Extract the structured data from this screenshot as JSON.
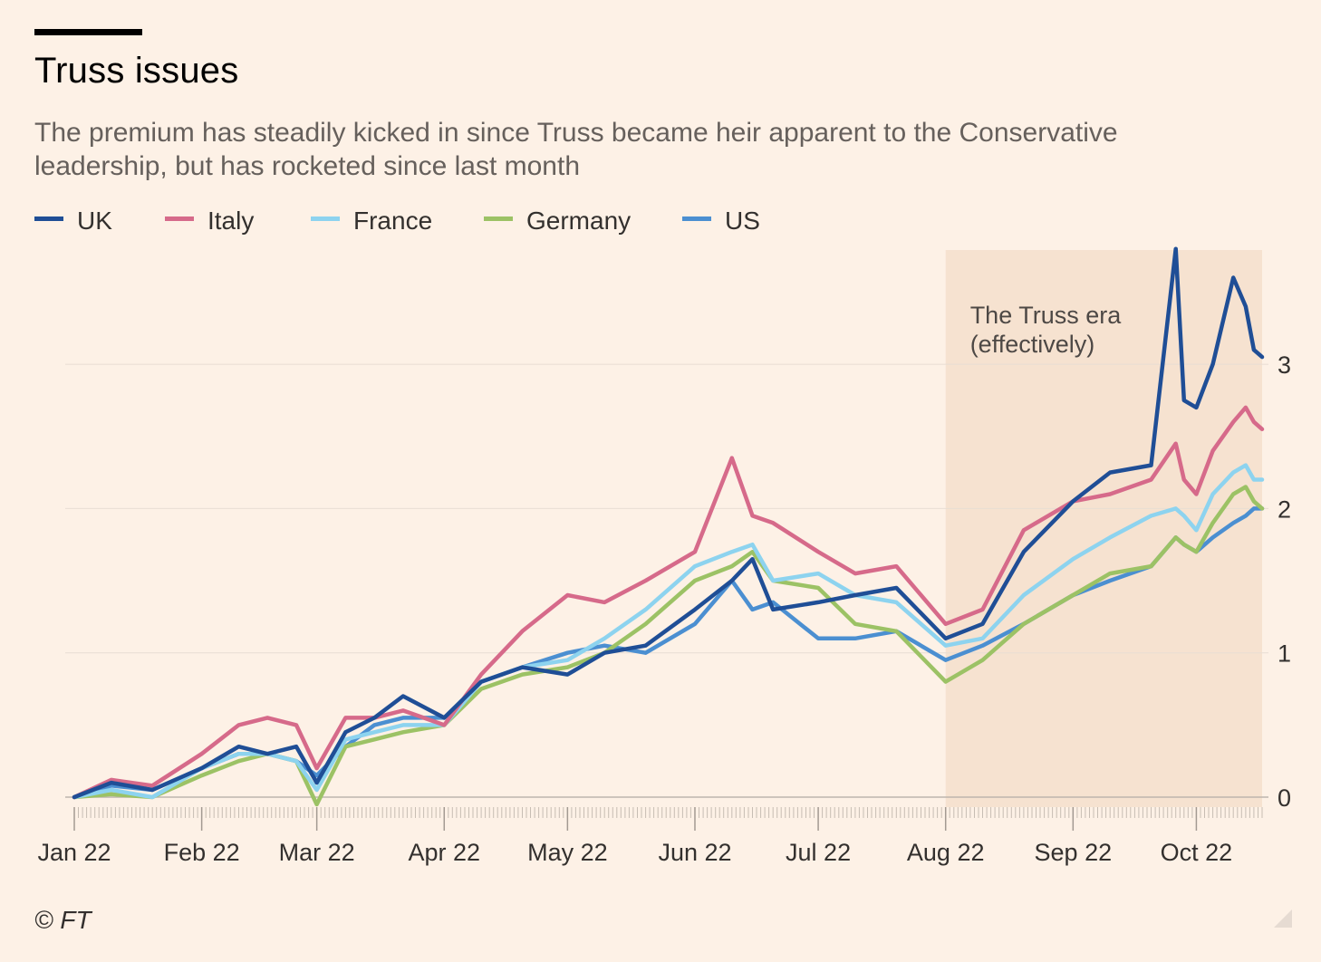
{
  "title": "Truss issues",
  "subtitle": "The premium has steadily kicked in since Truss became heir apparent to the Conservative leadership, but has rocketed since last month",
  "source": "© FT",
  "legend": [
    {
      "name": "UK",
      "color": "#1f4e96"
    },
    {
      "name": "Italy",
      "color": "#d66a8a"
    },
    {
      "name": "France",
      "color": "#8dd3ef"
    },
    {
      "name": "Germany",
      "color": "#9cc265"
    },
    {
      "name": "US",
      "color": "#4b8fd1"
    }
  ],
  "annotation": {
    "line1": "The Truss era",
    "line2": "(effectively)"
  },
  "chart_data": {
    "type": "line",
    "x_tick_labels": [
      "Jan 22",
      "Feb 22",
      "Mar 22",
      "Apr 22",
      "May 22",
      "Jun 22",
      "Jul 22",
      "Aug 22",
      "Sep 22",
      "Oct 22"
    ],
    "y_ticks": [
      0,
      1,
      2,
      3
    ],
    "ylim": [
      -0.1,
      3.8
    ],
    "y_axis_side": "right",
    "grid": true,
    "legend_position": "top-left",
    "shaded_region": {
      "from": "2022-08-01",
      "to": "2022-10-17",
      "label": "The Truss era (effectively)"
    },
    "x_dates": [
      "2022-01-01",
      "2022-01-10",
      "2022-01-20",
      "2022-02-01",
      "2022-02-10",
      "2022-02-17",
      "2022-02-24",
      "2022-03-01",
      "2022-03-08",
      "2022-03-15",
      "2022-03-22",
      "2022-04-01",
      "2022-04-10",
      "2022-04-20",
      "2022-05-01",
      "2022-05-10",
      "2022-05-20",
      "2022-06-01",
      "2022-06-10",
      "2022-06-15",
      "2022-06-20",
      "2022-07-01",
      "2022-07-10",
      "2022-07-20",
      "2022-08-01",
      "2022-08-10",
      "2022-08-20",
      "2022-09-01",
      "2022-09-10",
      "2022-09-20",
      "2022-09-26",
      "2022-09-28",
      "2022-10-01",
      "2022-10-05",
      "2022-10-10",
      "2022-10-13",
      "2022-10-15",
      "2022-10-17"
    ],
    "series": [
      {
        "name": "UK",
        "color": "#1f4e96",
        "values": [
          0.0,
          0.1,
          0.05,
          0.2,
          0.35,
          0.3,
          0.35,
          0.1,
          0.45,
          0.55,
          0.7,
          0.55,
          0.8,
          0.9,
          0.85,
          1.0,
          1.05,
          1.3,
          1.5,
          1.65,
          1.3,
          1.35,
          1.4,
          1.45,
          1.1,
          1.2,
          1.7,
          2.05,
          2.25,
          2.3,
          3.8,
          2.75,
          2.7,
          3.0,
          3.6,
          3.4,
          3.1,
          3.05
        ]
      },
      {
        "name": "Italy",
        "color": "#d66a8a",
        "values": [
          0.0,
          0.12,
          0.08,
          0.3,
          0.5,
          0.55,
          0.5,
          0.2,
          0.55,
          0.55,
          0.6,
          0.5,
          0.85,
          1.15,
          1.4,
          1.35,
          1.5,
          1.7,
          2.35,
          1.95,
          1.9,
          1.7,
          1.55,
          1.6,
          1.2,
          1.3,
          1.85,
          2.05,
          2.1,
          2.2,
          2.45,
          2.2,
          2.1,
          2.4,
          2.6,
          2.7,
          2.6,
          2.55
        ]
      },
      {
        "name": "France",
        "color": "#8dd3ef",
        "values": [
          0.0,
          0.05,
          0.0,
          0.2,
          0.3,
          0.3,
          0.25,
          0.05,
          0.4,
          0.45,
          0.5,
          0.5,
          0.8,
          0.9,
          0.95,
          1.1,
          1.3,
          1.6,
          1.7,
          1.75,
          1.5,
          1.55,
          1.4,
          1.35,
          1.05,
          1.1,
          1.4,
          1.65,
          1.8,
          1.95,
          2.0,
          1.95,
          1.85,
          2.1,
          2.25,
          2.3,
          2.2,
          2.2
        ]
      },
      {
        "name": "Germany",
        "color": "#9cc265",
        "values": [
          0.0,
          0.02,
          0.0,
          0.15,
          0.25,
          0.3,
          0.25,
          -0.05,
          0.35,
          0.4,
          0.45,
          0.5,
          0.75,
          0.85,
          0.9,
          1.0,
          1.2,
          1.5,
          1.6,
          1.7,
          1.5,
          1.45,
          1.2,
          1.15,
          0.8,
          0.95,
          1.2,
          1.4,
          1.55,
          1.6,
          1.8,
          1.75,
          1.7,
          1.9,
          2.1,
          2.15,
          2.05,
          2.0
        ]
      },
      {
        "name": "US",
        "color": "#4b8fd1",
        "values": [
          0.0,
          0.08,
          0.05,
          0.2,
          0.3,
          0.3,
          0.25,
          0.15,
          0.35,
          0.5,
          0.55,
          0.55,
          0.8,
          0.9,
          1.0,
          1.05,
          1.0,
          1.2,
          1.5,
          1.3,
          1.35,
          1.1,
          1.1,
          1.15,
          0.95,
          1.05,
          1.2,
          1.4,
          1.5,
          1.6,
          1.8,
          1.75,
          1.7,
          1.8,
          1.9,
          1.95,
          2.0,
          2.0
        ]
      }
    ]
  }
}
